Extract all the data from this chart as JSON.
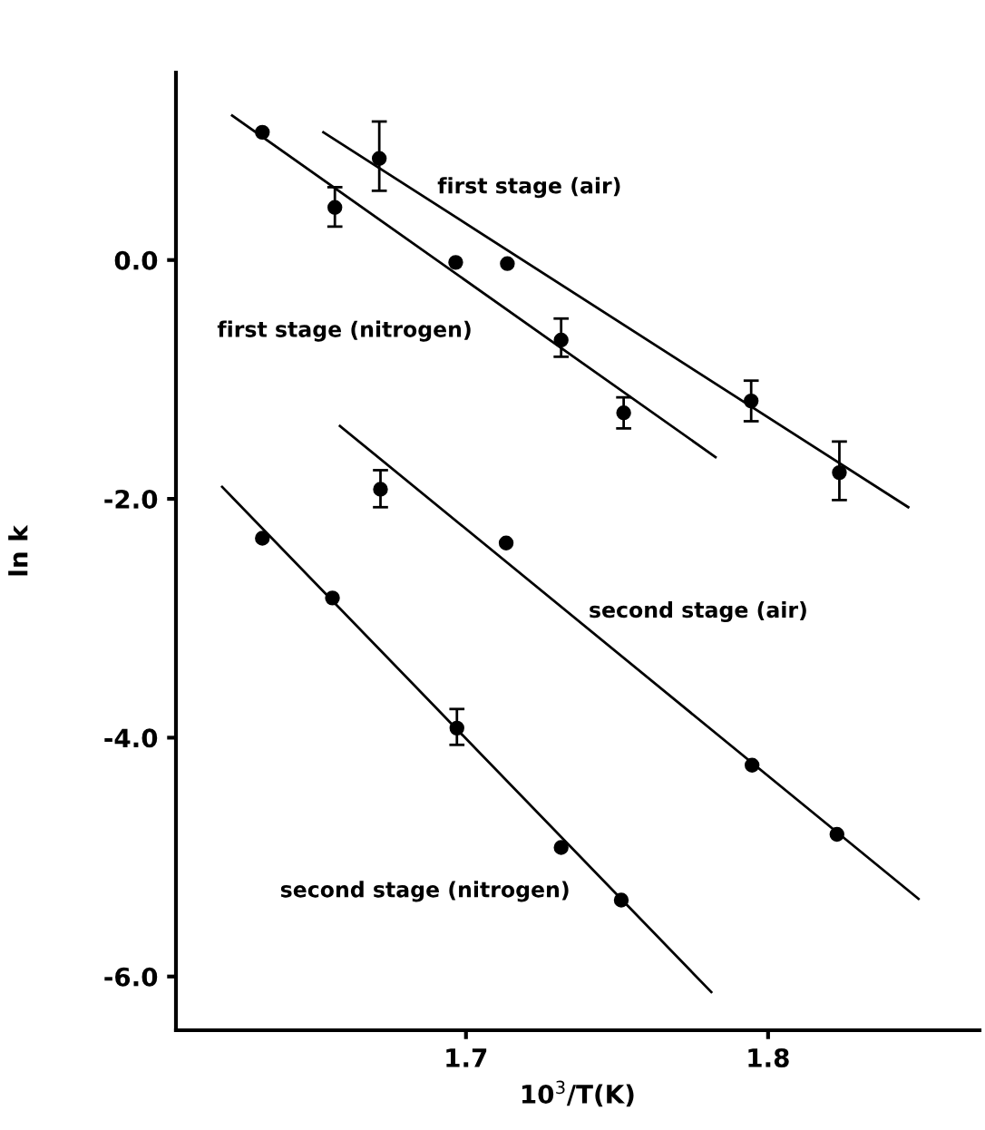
{
  "chart_data": {
    "type": "scatter",
    "xlabel": "10$^{3}$/T(K)",
    "ylabel": "ln k",
    "xlim": [
      1.604,
      1.87
    ],
    "ylim": [
      -6.45,
      1.57
    ],
    "xticks": [
      {
        "value": 1.7,
        "label": "1.7"
      },
      {
        "value": 1.8,
        "label": "1.8"
      }
    ],
    "yticks": [
      {
        "value": 0,
        "label": "0.0"
      },
      {
        "value": -2,
        "label": "-2.0"
      },
      {
        "value": -4,
        "label": "-4.0"
      },
      {
        "value": -6,
        "label": "-6.0"
      }
    ],
    "grid": false,
    "legend": false,
    "series": [
      {
        "marker": "circle",
        "color": "#000000",
        "x": [
          1.6326,
          1.6566,
          1.6966,
          1.7315,
          1.7522
        ],
        "values": [
          1.07,
          0.44,
          -0.02,
          -0.67,
          -1.28
        ],
        "errors": [
          null,
          [
            0.28,
            0.61
          ],
          null,
          [
            -0.81,
            -0.49
          ],
          [
            -1.41,
            -1.15
          ]
        ]
      },
      {
        "type": "line",
        "marker": "none",
        "color": "#000000",
        "x": [
          1.6226,
          1.7826
        ],
        "values": [
          1.21,
          -1.65
        ]
      },
      {
        "marker": "circle",
        "color": "#000000",
        "x": [
          1.6713,
          1.7137,
          1.7944,
          1.8236
        ],
        "values": [
          0.85,
          -0.03,
          -1.18,
          -1.78
        ],
        "errors": [
          [
            0.58,
            1.16
          ],
          null,
          [
            -1.35,
            -1.01
          ],
          [
            -2.01,
            -1.52
          ]
        ]
      },
      {
        "type": "line",
        "marker": "none",
        "color": "#000000",
        "x": [
          1.6528,
          1.8464
        ],
        "values": [
          1.07,
          -2.07
        ]
      },
      {
        "marker": "circle",
        "color": "#000000",
        "x": [
          1.6717,
          1.7133,
          1.7947,
          1.8228
        ],
        "values": [
          -1.92,
          -2.37,
          -4.23,
          -4.81
        ],
        "errors": [
          [
            -2.07,
            -1.76
          ],
          null,
          null,
          null
        ]
      },
      {
        "type": "line",
        "marker": "none",
        "color": "#000000",
        "x": [
          1.6583,
          1.8498
        ],
        "values": [
          -1.39,
          -5.35
        ]
      },
      {
        "marker": "circle",
        "color": "#000000",
        "x": [
          1.6326,
          1.6558,
          1.697,
          1.7315,
          1.7514
        ],
        "values": [
          -2.33,
          -2.83,
          -3.92,
          -4.92,
          -5.36
        ],
        "errors": [
          null,
          null,
          [
            -4.06,
            -3.76
          ],
          null,
          null
        ]
      },
      {
        "type": "line",
        "marker": "none",
        "color": "#000000",
        "x": [
          1.6193,
          1.7812
        ],
        "values": [
          -1.9,
          -6.13
        ]
      }
    ],
    "annotations": [
      "first stage (air)",
      "first stage (nitrogen)",
      "second stage (air)",
      "second stage (nitrogen)"
    ]
  }
}
